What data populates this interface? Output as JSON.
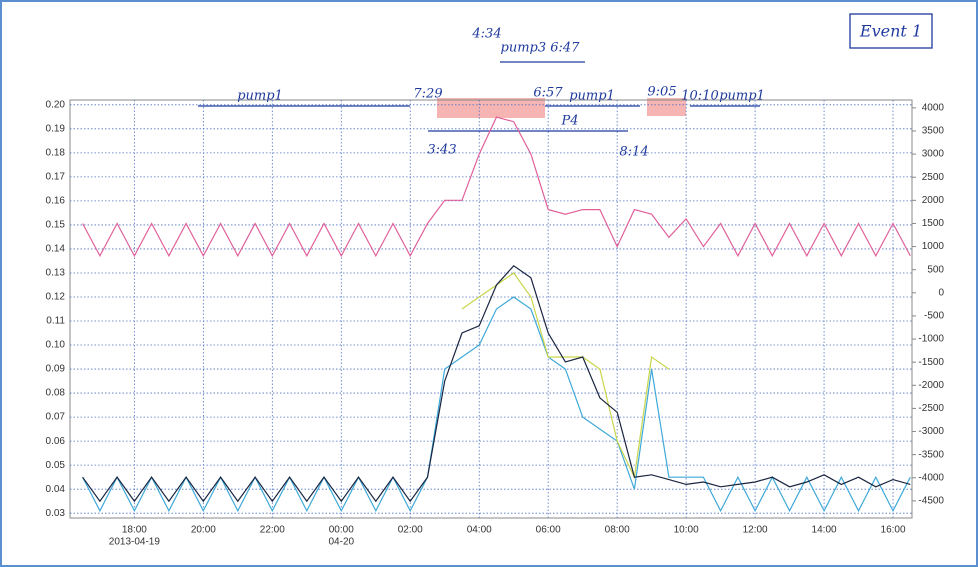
{
  "chart_data": {
    "type": "line",
    "x": [
      "2013-04-19T16:30",
      "2013-04-19T17:00",
      "2013-04-19T17:30",
      "2013-04-19T18:00",
      "2013-04-19T18:30",
      "2013-04-19T19:00",
      "2013-04-19T19:30",
      "2013-04-19T20:00",
      "2013-04-19T20:30",
      "2013-04-19T21:00",
      "2013-04-19T21:30",
      "2013-04-19T22:00",
      "2013-04-19T22:30",
      "2013-04-19T23:00",
      "2013-04-19T23:30",
      "2013-04-20T00:00",
      "2013-04-20T00:30",
      "2013-04-20T01:00",
      "2013-04-20T01:30",
      "2013-04-20T02:00",
      "2013-04-20T02:30",
      "2013-04-20T03:00",
      "2013-04-20T03:30",
      "2013-04-20T04:00",
      "2013-04-20T04:30",
      "2013-04-20T05:00",
      "2013-04-20T05:30",
      "2013-04-20T06:00",
      "2013-04-20T06:30",
      "2013-04-20T07:00",
      "2013-04-20T07:30",
      "2013-04-20T08:00",
      "2013-04-20T08:30",
      "2013-04-20T09:00",
      "2013-04-20T09:30",
      "2013-04-20T10:00",
      "2013-04-20T10:30",
      "2013-04-20T11:00",
      "2013-04-20T11:30",
      "2013-04-20T12:00",
      "2013-04-20T12:30",
      "2013-04-20T13:00",
      "2013-04-20T13:30",
      "2013-04-20T14:00",
      "2013-04-20T14:30",
      "2013-04-20T15:00",
      "2013-04-20T15:30",
      "2013-04-20T16:00",
      "2013-04-20T16:30"
    ],
    "series": [
      {
        "color": "#3fa9d8",
        "values": [
          0.045,
          0.031,
          0.045,
          0.031,
          0.045,
          0.031,
          0.045,
          0.031,
          0.045,
          0.031,
          0.045,
          0.031,
          0.045,
          0.031,
          0.045,
          0.031,
          0.045,
          0.031,
          0.045,
          0.031,
          0.045,
          0.09,
          0.095,
          0.1,
          0.115,
          0.12,
          0.115,
          0.095,
          0.09,
          0.07,
          0.065,
          0.06,
          0.04,
          0.09,
          0.045,
          0.045,
          0.045,
          0.031,
          0.045,
          0.031,
          0.045,
          0.031,
          0.045,
          0.031,
          0.045,
          0.031,
          0.045,
          0.031,
          0.045
        ]
      },
      {
        "color": "#c9d64a",
        "values": [
          null,
          null,
          null,
          null,
          null,
          null,
          null,
          null,
          null,
          null,
          null,
          null,
          null,
          null,
          null,
          null,
          null,
          null,
          null,
          null,
          null,
          null,
          0.115,
          0.12,
          0.125,
          0.13,
          0.12,
          0.095,
          0.095,
          0.095,
          0.09,
          0.06,
          0.045,
          0.095,
          0.09,
          null,
          null,
          null,
          null,
          null,
          null,
          null,
          null,
          null,
          null,
          null,
          null,
          null,
          null
        ]
      },
      {
        "color": "#1a2540",
        "values": [
          0.045,
          0.035,
          0.045,
          0.035,
          0.045,
          0.035,
          0.045,
          0.035,
          0.045,
          0.035,
          0.045,
          0.035,
          0.045,
          0.035,
          0.045,
          0.035,
          0.045,
          0.035,
          0.045,
          0.035,
          0.045,
          0.085,
          0.105,
          0.108,
          0.125,
          0.133,
          0.128,
          0.105,
          0.093,
          0.095,
          0.078,
          0.072,
          0.045,
          0.046,
          0.044,
          0.042,
          0.043,
          0.041,
          0.042,
          0.043,
          0.045,
          0.041,
          0.043,
          0.046,
          0.042,
          0.045,
          0.041,
          0.044,
          0.042
        ]
      },
      {
        "color": "#e0609a",
        "axis": "y2",
        "values": [
          1500,
          800,
          1500,
          800,
          1500,
          800,
          1500,
          800,
          1500,
          800,
          1500,
          800,
          1500,
          800,
          1500,
          800,
          1500,
          800,
          1500,
          800,
          1500,
          2000,
          2000,
          3000,
          3800,
          3700,
          3000,
          1800,
          1700,
          1800,
          1800,
          1000,
          1800,
          1700,
          1200,
          1600,
          1000,
          1500,
          800,
          1500,
          800,
          1500,
          800,
          1500,
          800,
          1500,
          800,
          1500,
          800
        ]
      }
    ],
    "xlim": [
      "2013-04-19T16:08",
      "2013-04-20T16:33"
    ],
    "xticks": [
      {
        "value": "2013-04-19T18:00",
        "label": "18:00"
      },
      {
        "value": "2013-04-19T20:00",
        "label": "20:00"
      },
      {
        "value": "2013-04-19T22:00",
        "label": "22:00"
      },
      {
        "value": "2013-04-20T00:00",
        "label": "00:00"
      },
      {
        "value": "2013-04-20T02:00",
        "label": "02:00"
      },
      {
        "value": "2013-04-20T04:00",
        "label": "04:00"
      },
      {
        "value": "2013-04-20T06:00",
        "label": "06:00"
      },
      {
        "value": "2013-04-20T08:00",
        "label": "08:00"
      },
      {
        "value": "2013-04-20T10:00",
        "label": "10:00"
      },
      {
        "value": "2013-04-20T12:00",
        "label": "12:00"
      },
      {
        "value": "2013-04-20T14:00",
        "label": "14:00"
      },
      {
        "value": "2013-04-20T16:00",
        "label": "16:00"
      }
    ],
    "xtick_dates": [
      {
        "value": "2013-04-19T18:00",
        "label": "2013-04-19"
      },
      {
        "value": "2013-04-20T00:00",
        "label": "04-20"
      }
    ],
    "ylim": [
      0.028,
      0.202
    ],
    "yticks": [
      0.03,
      0.04,
      0.05,
      0.06,
      0.07,
      0.08,
      0.09,
      {
        "value": 0.1,
        "label": "0.10"
      },
      0.11,
      0.12,
      0.13,
      0.14,
      0.15,
      0.16,
      0.17,
      0.18,
      0.19,
      {
        "value": 0.2,
        "label": "0.20"
      }
    ],
    "y2lim": [
      -4870,
      4170
    ],
    "y2ticks": [
      -4500,
      -4000,
      -3500,
      -3000,
      -2500,
      -2000,
      -1500,
      -1000,
      -500,
      0,
      500,
      1000,
      1500,
      2000,
      2500,
      3000,
      3500,
      4000
    ],
    "grid": true,
    "annotations": [
      "Event 1",
      "pump1",
      "7:29",
      "4:34",
      "pump3 6:47",
      "6:57",
      "pump1",
      "9:05",
      "10:10",
      "pump1",
      "P4",
      "3:43",
      "8:14"
    ]
  }
}
